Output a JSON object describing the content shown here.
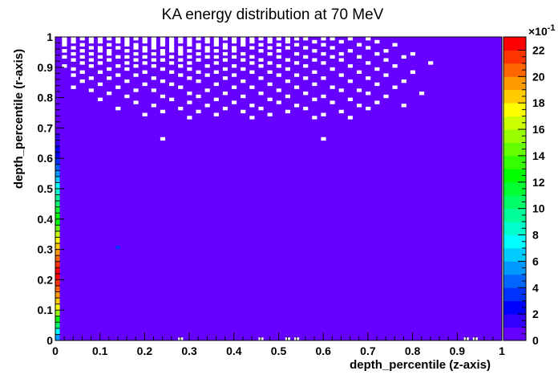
{
  "chart_data": {
    "type": "heatmap",
    "title": "KA energy distribution at 70 MeV",
    "xlabel": "depth_percentile (z-axis)",
    "ylabel": "depth_percentile (r-axis)",
    "xlim": [
      0,
      1
    ],
    "ylim": [
      0,
      1
    ],
    "x_ticks": [
      "0",
      "0.1",
      "0.2",
      "0.3",
      "0.4",
      "0.5",
      "0.6",
      "0.7",
      "0.8",
      "0.9",
      "1"
    ],
    "y_ticks": [
      "0",
      "0.1",
      "0.2",
      "0.3",
      "0.4",
      "0.5",
      "0.6",
      "0.7",
      "0.8",
      "0.9",
      "1"
    ],
    "colorbar": {
      "range": [
        0,
        23
      ],
      "exponent_label": "×10",
      "exponent_superscript": "-1",
      "ticks": [
        "0",
        "2",
        "4",
        "6",
        "8",
        "10",
        "12",
        "14",
        "16",
        "18",
        "20",
        "22"
      ],
      "colors": [
        "#6600ff",
        "#3300ff",
        "#0000ff",
        "#0033ff",
        "#0066ff",
        "#0099ff",
        "#00ccff",
        "#00ffff",
        "#00ffcc",
        "#00ff99",
        "#00ff66",
        "#00ff33",
        "#00ff00",
        "#33ff00",
        "#66ff00",
        "#99ff00",
        "#ccff00",
        "#ffff00",
        "#ffcc00",
        "#ff9900",
        "#ff6600",
        "#ff3300",
        "#ff0000"
      ]
    },
    "background_value": 0.5,
    "first_column_bins": [
      {
        "y": [
          0.0,
          0.02
        ],
        "value": 5
      },
      {
        "y": [
          0.02,
          0.04
        ],
        "value": 7
      },
      {
        "y": [
          0.04,
          0.06
        ],
        "value": 10
      },
      {
        "y": [
          0.06,
          0.08
        ],
        "value": 13
      },
      {
        "y": [
          0.08,
          0.1
        ],
        "value": 15
      },
      {
        "y": [
          0.1,
          0.12
        ],
        "value": 17
      },
      {
        "y": [
          0.12,
          0.14
        ],
        "value": 18
      },
      {
        "y": [
          0.14,
          0.16
        ],
        "value": 19
      },
      {
        "y": [
          0.16,
          0.18
        ],
        "value": 20
      },
      {
        "y": [
          0.18,
          0.2
        ],
        "value": 21
      },
      {
        "y": [
          0.2,
          0.22
        ],
        "value": 22
      },
      {
        "y": [
          0.22,
          0.24
        ],
        "value": 22
      },
      {
        "y": [
          0.24,
          0.26
        ],
        "value": 21
      },
      {
        "y": [
          0.26,
          0.28
        ],
        "value": 20
      },
      {
        "y": [
          0.28,
          0.3
        ],
        "value": 19
      },
      {
        "y": [
          0.3,
          0.32
        ],
        "value": 18
      },
      {
        "y": [
          0.32,
          0.34
        ],
        "value": 17
      },
      {
        "y": [
          0.34,
          0.36
        ],
        "value": 16
      },
      {
        "y": [
          0.36,
          0.38
        ],
        "value": 14
      },
      {
        "y": [
          0.38,
          0.4
        ],
        "value": 13
      },
      {
        "y": [
          0.4,
          0.42
        ],
        "value": 12
      },
      {
        "y": [
          0.42,
          0.44
        ],
        "value": 11
      },
      {
        "y": [
          0.44,
          0.46
        ],
        "value": 10
      },
      {
        "y": [
          0.46,
          0.48
        ],
        "value": 9
      },
      {
        "y": [
          0.48,
          0.5
        ],
        "value": 8
      },
      {
        "y": [
          0.5,
          0.52
        ],
        "value": 7
      },
      {
        "y": [
          0.52,
          0.54
        ],
        "value": 6
      },
      {
        "y": [
          0.54,
          0.56
        ],
        "value": 5
      },
      {
        "y": [
          0.56,
          0.58
        ],
        "value": 4
      },
      {
        "y": [
          0.58,
          0.6
        ],
        "value": 3
      },
      {
        "y": [
          0.6,
          0.62
        ],
        "value": 2
      },
      {
        "y": [
          0.62,
          0.64
        ],
        "value": 2
      },
      {
        "y": [
          0.64,
          0.66
        ],
        "value": 1
      },
      {
        "y": [
          0.66,
          0.68
        ],
        "value": 1
      }
    ],
    "empty_bins": [
      [
        0.02,
        0.995
      ],
      [
        0.04,
        0.995
      ],
      [
        0.06,
        0.995
      ],
      [
        0.08,
        0.995
      ],
      [
        0.1,
        0.995
      ],
      [
        0.12,
        0.995
      ],
      [
        0.14,
        0.995
      ],
      [
        0.16,
        0.995
      ],
      [
        0.18,
        0.995
      ],
      [
        0.2,
        0.995
      ],
      [
        0.22,
        0.995
      ],
      [
        0.24,
        0.995
      ],
      [
        0.26,
        0.995
      ],
      [
        0.28,
        0.995
      ],
      [
        0.3,
        0.995
      ],
      [
        0.32,
        0.995
      ],
      [
        0.34,
        0.995
      ],
      [
        0.36,
        0.995
      ],
      [
        0.38,
        0.995
      ],
      [
        0.4,
        0.995
      ],
      [
        0.42,
        0.995
      ],
      [
        0.44,
        0.995
      ],
      [
        0.46,
        0.995
      ],
      [
        0.48,
        0.995
      ],
      [
        0.5,
        0.995
      ],
      [
        0.52,
        0.995
      ],
      [
        0.54,
        0.995
      ],
      [
        0.56,
        0.995
      ],
      [
        0.6,
        0.995
      ],
      [
        0.62,
        0.995
      ],
      [
        0.66,
        0.995
      ],
      [
        0.7,
        0.995
      ],
      [
        0.02,
        0.985
      ],
      [
        0.04,
        0.985
      ],
      [
        0.08,
        0.985
      ],
      [
        0.1,
        0.985
      ],
      [
        0.14,
        0.985
      ],
      [
        0.16,
        0.985
      ],
      [
        0.2,
        0.985
      ],
      [
        0.22,
        0.985
      ],
      [
        0.24,
        0.985
      ],
      [
        0.26,
        0.985
      ],
      [
        0.28,
        0.985
      ],
      [
        0.3,
        0.985
      ],
      [
        0.34,
        0.985
      ],
      [
        0.36,
        0.985
      ],
      [
        0.4,
        0.985
      ],
      [
        0.42,
        0.985
      ],
      [
        0.44,
        0.985
      ],
      [
        0.48,
        0.985
      ],
      [
        0.52,
        0.985
      ],
      [
        0.58,
        0.985
      ],
      [
        0.64,
        0.985
      ],
      [
        0.72,
        0.985
      ],
      [
        0.02,
        0.975
      ],
      [
        0.06,
        0.975
      ],
      [
        0.12,
        0.975
      ],
      [
        0.16,
        0.975
      ],
      [
        0.18,
        0.975
      ],
      [
        0.22,
        0.975
      ],
      [
        0.24,
        0.975
      ],
      [
        0.26,
        0.975
      ],
      [
        0.3,
        0.975
      ],
      [
        0.32,
        0.975
      ],
      [
        0.36,
        0.975
      ],
      [
        0.38,
        0.975
      ],
      [
        0.42,
        0.975
      ],
      [
        0.46,
        0.975
      ],
      [
        0.5,
        0.975
      ],
      [
        0.54,
        0.975
      ],
      [
        0.6,
        0.975
      ],
      [
        0.68,
        0.975
      ],
      [
        0.76,
        0.975
      ],
      [
        0.04,
        0.965
      ],
      [
        0.08,
        0.965
      ],
      [
        0.1,
        0.965
      ],
      [
        0.14,
        0.965
      ],
      [
        0.18,
        0.965
      ],
      [
        0.2,
        0.965
      ],
      [
        0.22,
        0.965
      ],
      [
        0.26,
        0.965
      ],
      [
        0.28,
        0.965
      ],
      [
        0.32,
        0.965
      ],
      [
        0.34,
        0.965
      ],
      [
        0.38,
        0.965
      ],
      [
        0.4,
        0.965
      ],
      [
        0.44,
        0.965
      ],
      [
        0.48,
        0.965
      ],
      [
        0.52,
        0.965
      ],
      [
        0.56,
        0.965
      ],
      [
        0.62,
        0.965
      ],
      [
        0.7,
        0.965
      ],
      [
        0.02,
        0.955
      ],
      [
        0.06,
        0.955
      ],
      [
        0.1,
        0.955
      ],
      [
        0.12,
        0.955
      ],
      [
        0.16,
        0.955
      ],
      [
        0.2,
        0.955
      ],
      [
        0.24,
        0.955
      ],
      [
        0.26,
        0.955
      ],
      [
        0.28,
        0.955
      ],
      [
        0.3,
        0.955
      ],
      [
        0.34,
        0.955
      ],
      [
        0.36,
        0.955
      ],
      [
        0.4,
        0.955
      ],
      [
        0.46,
        0.955
      ],
      [
        0.5,
        0.955
      ],
      [
        0.58,
        0.955
      ],
      [
        0.66,
        0.955
      ],
      [
        0.74,
        0.955
      ],
      [
        0.04,
        0.945
      ],
      [
        0.08,
        0.945
      ],
      [
        0.12,
        0.945
      ],
      [
        0.18,
        0.945
      ],
      [
        0.22,
        0.945
      ],
      [
        0.24,
        0.945
      ],
      [
        0.28,
        0.945
      ],
      [
        0.32,
        0.945
      ],
      [
        0.38,
        0.945
      ],
      [
        0.42,
        0.945
      ],
      [
        0.48,
        0.945
      ],
      [
        0.54,
        0.945
      ],
      [
        0.6,
        0.945
      ],
      [
        0.64,
        0.945
      ],
      [
        0.72,
        0.945
      ],
      [
        0.8,
        0.945
      ],
      [
        0.02,
        0.935
      ],
      [
        0.06,
        0.935
      ],
      [
        0.1,
        0.935
      ],
      [
        0.14,
        0.935
      ],
      [
        0.16,
        0.935
      ],
      [
        0.2,
        0.935
      ],
      [
        0.26,
        0.935
      ],
      [
        0.3,
        0.935
      ],
      [
        0.34,
        0.935
      ],
      [
        0.36,
        0.935
      ],
      [
        0.4,
        0.935
      ],
      [
        0.44,
        0.935
      ],
      [
        0.5,
        0.935
      ],
      [
        0.56,
        0.935
      ],
      [
        0.62,
        0.935
      ],
      [
        0.68,
        0.935
      ],
      [
        0.78,
        0.935
      ],
      [
        0.04,
        0.925
      ],
      [
        0.08,
        0.925
      ],
      [
        0.12,
        0.925
      ],
      [
        0.18,
        0.925
      ],
      [
        0.22,
        0.925
      ],
      [
        0.24,
        0.925
      ],
      [
        0.28,
        0.925
      ],
      [
        0.32,
        0.925
      ],
      [
        0.38,
        0.925
      ],
      [
        0.42,
        0.925
      ],
      [
        0.46,
        0.925
      ],
      [
        0.52,
        0.925
      ],
      [
        0.58,
        0.925
      ],
      [
        0.64,
        0.925
      ],
      [
        0.74,
        0.925
      ],
      [
        0.06,
        0.915
      ],
      [
        0.1,
        0.915
      ],
      [
        0.16,
        0.915
      ],
      [
        0.2,
        0.915
      ],
      [
        0.26,
        0.915
      ],
      [
        0.3,
        0.915
      ],
      [
        0.36,
        0.915
      ],
      [
        0.44,
        0.915
      ],
      [
        0.48,
        0.915
      ],
      [
        0.54,
        0.915
      ],
      [
        0.6,
        0.915
      ],
      [
        0.7,
        0.915
      ],
      [
        0.84,
        0.915
      ],
      [
        0.02,
        0.905
      ],
      [
        0.08,
        0.905
      ],
      [
        0.14,
        0.905
      ],
      [
        0.18,
        0.905
      ],
      [
        0.22,
        0.905
      ],
      [
        0.28,
        0.905
      ],
      [
        0.34,
        0.905
      ],
      [
        0.4,
        0.905
      ],
      [
        0.46,
        0.905
      ],
      [
        0.5,
        0.905
      ],
      [
        0.56,
        0.905
      ],
      [
        0.66,
        0.905
      ],
      [
        0.76,
        0.905
      ],
      [
        0.04,
        0.895
      ],
      [
        0.12,
        0.895
      ],
      [
        0.16,
        0.895
      ],
      [
        0.24,
        0.895
      ],
      [
        0.3,
        0.895
      ],
      [
        0.38,
        0.895
      ],
      [
        0.42,
        0.895
      ],
      [
        0.52,
        0.895
      ],
      [
        0.62,
        0.895
      ],
      [
        0.72,
        0.895
      ],
      [
        0.06,
        0.885
      ],
      [
        0.1,
        0.885
      ],
      [
        0.2,
        0.885
      ],
      [
        0.26,
        0.885
      ],
      [
        0.32,
        0.885
      ],
      [
        0.36,
        0.885
      ],
      [
        0.44,
        0.885
      ],
      [
        0.48,
        0.885
      ],
      [
        0.58,
        0.885
      ],
      [
        0.68,
        0.885
      ],
      [
        0.8,
        0.885
      ],
      [
        0.04,
        0.875
      ],
      [
        0.14,
        0.875
      ],
      [
        0.18,
        0.875
      ],
      [
        0.28,
        0.875
      ],
      [
        0.34,
        0.875
      ],
      [
        0.4,
        0.875
      ],
      [
        0.5,
        0.875
      ],
      [
        0.54,
        0.875
      ],
      [
        0.64,
        0.875
      ],
      [
        0.74,
        0.875
      ],
      [
        0.08,
        0.865
      ],
      [
        0.12,
        0.865
      ],
      [
        0.22,
        0.865
      ],
      [
        0.3,
        0.865
      ],
      [
        0.38,
        0.865
      ],
      [
        0.46,
        0.865
      ],
      [
        0.56,
        0.865
      ],
      [
        0.6,
        0.865
      ],
      [
        0.7,
        0.865
      ],
      [
        0.06,
        0.855
      ],
      [
        0.16,
        0.855
      ],
      [
        0.24,
        0.855
      ],
      [
        0.32,
        0.855
      ],
      [
        0.42,
        0.855
      ],
      [
        0.52,
        0.855
      ],
      [
        0.66,
        0.855
      ],
      [
        0.78,
        0.855
      ],
      [
        0.1,
        0.845
      ],
      [
        0.2,
        0.845
      ],
      [
        0.26,
        0.845
      ],
      [
        0.36,
        0.845
      ],
      [
        0.48,
        0.845
      ],
      [
        0.58,
        0.845
      ],
      [
        0.72,
        0.845
      ],
      [
        0.04,
        0.835
      ],
      [
        0.14,
        0.835
      ],
      [
        0.28,
        0.835
      ],
      [
        0.4,
        0.835
      ],
      [
        0.44,
        0.835
      ],
      [
        0.54,
        0.835
      ],
      [
        0.62,
        0.835
      ],
      [
        0.76,
        0.835
      ],
      [
        0.08,
        0.825
      ],
      [
        0.18,
        0.825
      ],
      [
        0.22,
        0.825
      ],
      [
        0.34,
        0.825
      ],
      [
        0.5,
        0.825
      ],
      [
        0.64,
        0.825
      ],
      [
        0.68,
        0.825
      ],
      [
        0.12,
        0.815
      ],
      [
        0.3,
        0.815
      ],
      [
        0.38,
        0.815
      ],
      [
        0.46,
        0.815
      ],
      [
        0.56,
        0.815
      ],
      [
        0.7,
        0.815
      ],
      [
        0.82,
        0.815
      ],
      [
        0.16,
        0.805
      ],
      [
        0.24,
        0.805
      ],
      [
        0.32,
        0.805
      ],
      [
        0.42,
        0.805
      ],
      [
        0.52,
        0.805
      ],
      [
        0.6,
        0.805
      ],
      [
        0.74,
        0.805
      ],
      [
        0.1,
        0.795
      ],
      [
        0.26,
        0.795
      ],
      [
        0.36,
        0.795
      ],
      [
        0.48,
        0.795
      ],
      [
        0.58,
        0.795
      ],
      [
        0.66,
        0.795
      ],
      [
        0.18,
        0.785
      ],
      [
        0.3,
        0.785
      ],
      [
        0.4,
        0.785
      ],
      [
        0.5,
        0.785
      ],
      [
        0.62,
        0.785
      ],
      [
        0.72,
        0.785
      ],
      [
        0.22,
        0.775
      ],
      [
        0.34,
        0.775
      ],
      [
        0.44,
        0.775
      ],
      [
        0.54,
        0.775
      ],
      [
        0.68,
        0.775
      ],
      [
        0.78,
        0.775
      ],
      [
        0.14,
        0.765
      ],
      [
        0.28,
        0.765
      ],
      [
        0.38,
        0.765
      ],
      [
        0.46,
        0.765
      ],
      [
        0.56,
        0.765
      ],
      [
        0.7,
        0.765
      ],
      [
        0.24,
        0.755
      ],
      [
        0.32,
        0.755
      ],
      [
        0.42,
        0.755
      ],
      [
        0.52,
        0.755
      ],
      [
        0.64,
        0.755
      ],
      [
        0.2,
        0.745
      ],
      [
        0.36,
        0.745
      ],
      [
        0.48,
        0.745
      ],
      [
        0.6,
        0.745
      ],
      [
        0.3,
        0.735
      ],
      [
        0.44,
        0.735
      ],
      [
        0.58,
        0.735
      ],
      [
        0.66,
        0.735
      ],
      [
        0.24,
        0.665
      ],
      [
        0.6,
        0.665
      ],
      [
        0.28,
        0.005
      ],
      [
        0.46,
        0.005
      ],
      [
        0.52,
        0.005
      ],
      [
        0.54,
        0.005
      ],
      [
        0.92,
        0.005
      ],
      [
        0.94,
        0.005
      ]
    ],
    "isolated_bins": [
      {
        "x": 0.14,
        "y": 0.305,
        "value": 3
      }
    ]
  }
}
